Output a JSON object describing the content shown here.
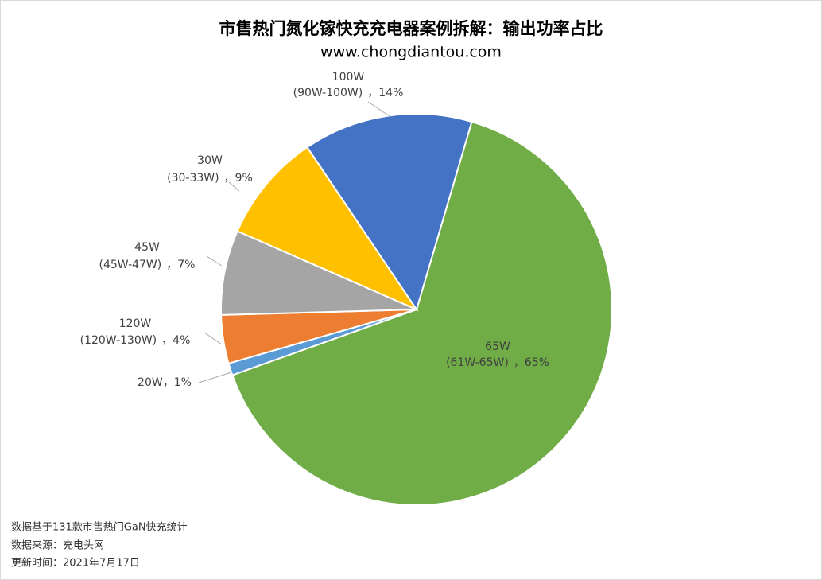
{
  "chart_data": {
    "type": "pie",
    "title": "市售热门氮化镓快充充电器案例拆解：输出功率占比",
    "subtitle": "www.chongdiantou.com",
    "categories": [
      "65W",
      "20W",
      "120W",
      "45W",
      "30W",
      "100W"
    ],
    "ranges": [
      "(61W-65W)",
      null,
      "(120W-130W)",
      "(45W-47W)",
      "(30-33W)",
      "(90W-100W)"
    ],
    "values": [
      65,
      1,
      4,
      7,
      9,
      14
    ],
    "value_labels": [
      "65%",
      "1%",
      "4%",
      "7%",
      "9%",
      "14%"
    ],
    "separator": "，",
    "colors": [
      "#70ad47",
      "#5b9bd5",
      "#ed7d31",
      "#a5a5a5",
      "#ffc000",
      "#4472c4"
    ],
    "notes": [
      "数据基于131款市售热门GaN快充统计",
      "数据来源：充电头网",
      "更新时间：2021年7月17日"
    ]
  }
}
